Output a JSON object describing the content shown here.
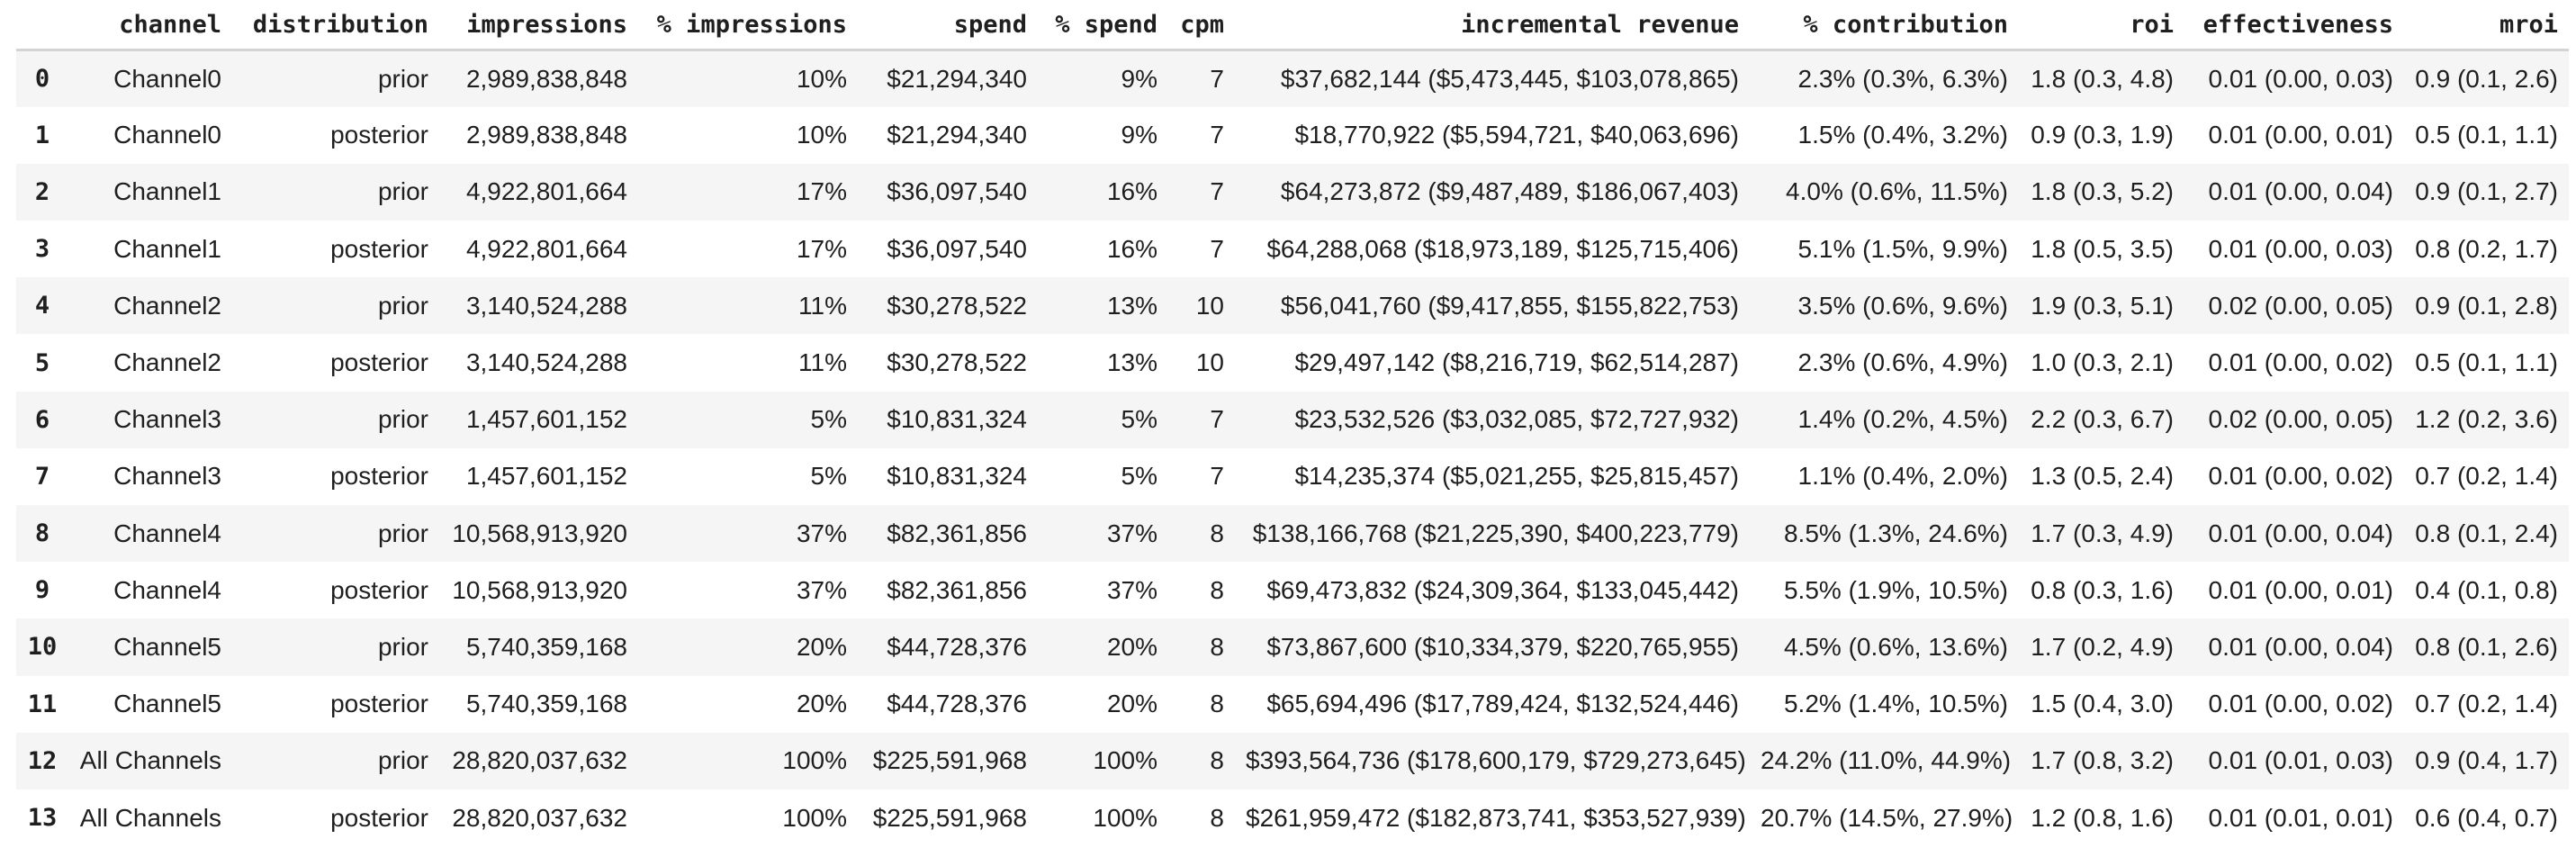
{
  "colors": {
    "background": "#ffffff",
    "stripe_row": "#f5f5f5",
    "header_rule": "#d4d4d4",
    "text": "#1f1f1f"
  },
  "table": {
    "columns": [
      "",
      "channel",
      "distribution",
      "impressions",
      "% impressions",
      "spend",
      "% spend",
      "cpm",
      "incremental revenue",
      "% contribution",
      "roi",
      "effectiveness",
      "mroi"
    ],
    "rows": [
      [
        "0",
        "Channel0",
        "prior",
        "2,989,838,848",
        "10%",
        "$21,294,340",
        "9%",
        "7",
        "$37,682,144 ($5,473,445, $103,078,865)",
        "2.3% (0.3%, 6.3%)",
        "1.8 (0.3, 4.8)",
        "0.01 (0.00, 0.03)",
        "0.9 (0.1, 2.6)"
      ],
      [
        "1",
        "Channel0",
        "posterior",
        "2,989,838,848",
        "10%",
        "$21,294,340",
        "9%",
        "7",
        "$18,770,922 ($5,594,721, $40,063,696)",
        "1.5% (0.4%, 3.2%)",
        "0.9 (0.3, 1.9)",
        "0.01 (0.00, 0.01)",
        "0.5 (0.1, 1.1)"
      ],
      [
        "2",
        "Channel1",
        "prior",
        "4,922,801,664",
        "17%",
        "$36,097,540",
        "16%",
        "7",
        "$64,273,872 ($9,487,489, $186,067,403)",
        "4.0% (0.6%, 11.5%)",
        "1.8 (0.3, 5.2)",
        "0.01 (0.00, 0.04)",
        "0.9 (0.1, 2.7)"
      ],
      [
        "3",
        "Channel1",
        "posterior",
        "4,922,801,664",
        "17%",
        "$36,097,540",
        "16%",
        "7",
        "$64,288,068 ($18,973,189, $125,715,406)",
        "5.1% (1.5%, 9.9%)",
        "1.8 (0.5, 3.5)",
        "0.01 (0.00, 0.03)",
        "0.8 (0.2, 1.7)"
      ],
      [
        "4",
        "Channel2",
        "prior",
        "3,140,524,288",
        "11%",
        "$30,278,522",
        "13%",
        "10",
        "$56,041,760 ($9,417,855, $155,822,753)",
        "3.5% (0.6%, 9.6%)",
        "1.9 (0.3, 5.1)",
        "0.02 (0.00, 0.05)",
        "0.9 (0.1, 2.8)"
      ],
      [
        "5",
        "Channel2",
        "posterior",
        "3,140,524,288",
        "11%",
        "$30,278,522",
        "13%",
        "10",
        "$29,497,142 ($8,216,719, $62,514,287)",
        "2.3% (0.6%, 4.9%)",
        "1.0 (0.3, 2.1)",
        "0.01 (0.00, 0.02)",
        "0.5 (0.1, 1.1)"
      ],
      [
        "6",
        "Channel3",
        "prior",
        "1,457,601,152",
        "5%",
        "$10,831,324",
        "5%",
        "7",
        "$23,532,526 ($3,032,085, $72,727,932)",
        "1.4% (0.2%, 4.5%)",
        "2.2 (0.3, 6.7)",
        "0.02 (0.00, 0.05)",
        "1.2 (0.2, 3.6)"
      ],
      [
        "7",
        "Channel3",
        "posterior",
        "1,457,601,152",
        "5%",
        "$10,831,324",
        "5%",
        "7",
        "$14,235,374 ($5,021,255, $25,815,457)",
        "1.1% (0.4%, 2.0%)",
        "1.3 (0.5, 2.4)",
        "0.01 (0.00, 0.02)",
        "0.7 (0.2, 1.4)"
      ],
      [
        "8",
        "Channel4",
        "prior",
        "10,568,913,920",
        "37%",
        "$82,361,856",
        "37%",
        "8",
        "$138,166,768 ($21,225,390, $400,223,779)",
        "8.5% (1.3%, 24.6%)",
        "1.7 (0.3, 4.9)",
        "0.01 (0.00, 0.04)",
        "0.8 (0.1, 2.4)"
      ],
      [
        "9",
        "Channel4",
        "posterior",
        "10,568,913,920",
        "37%",
        "$82,361,856",
        "37%",
        "8",
        "$69,473,832 ($24,309,364, $133,045,442)",
        "5.5% (1.9%, 10.5%)",
        "0.8 (0.3, 1.6)",
        "0.01 (0.00, 0.01)",
        "0.4 (0.1, 0.8)"
      ],
      [
        "10",
        "Channel5",
        "prior",
        "5,740,359,168",
        "20%",
        "$44,728,376",
        "20%",
        "8",
        "$73,867,600 ($10,334,379, $220,765,955)",
        "4.5% (0.6%, 13.6%)",
        "1.7 (0.2, 4.9)",
        "0.01 (0.00, 0.04)",
        "0.8 (0.1, 2.6)"
      ],
      [
        "11",
        "Channel5",
        "posterior",
        "5,740,359,168",
        "20%",
        "$44,728,376",
        "20%",
        "8",
        "$65,694,496 ($17,789,424, $132,524,446)",
        "5.2% (1.4%, 10.5%)",
        "1.5 (0.4, 3.0)",
        "0.01 (0.00, 0.02)",
        "0.7 (0.2, 1.4)"
      ],
      [
        "12",
        "All Channels",
        "prior",
        "28,820,037,632",
        "100%",
        "$225,591,968",
        "100%",
        "8",
        "$393,564,736 ($178,600,179, $729,273,645)",
        "24.2% (11.0%, 44.9%)",
        "1.7 (0.8, 3.2)",
        "0.01 (0.01, 0.03)",
        "0.9 (0.4, 1.7)"
      ],
      [
        "13",
        "All Channels",
        "posterior",
        "28,820,037,632",
        "100%",
        "$225,591,968",
        "100%",
        "8",
        "$261,959,472 ($182,873,741, $353,527,939)",
        "20.7% (14.5%, 27.9%)",
        "1.2 (0.8, 1.6)",
        "0.01 (0.01, 0.01)",
        "0.6 (0.4, 0.7)"
      ]
    ]
  }
}
